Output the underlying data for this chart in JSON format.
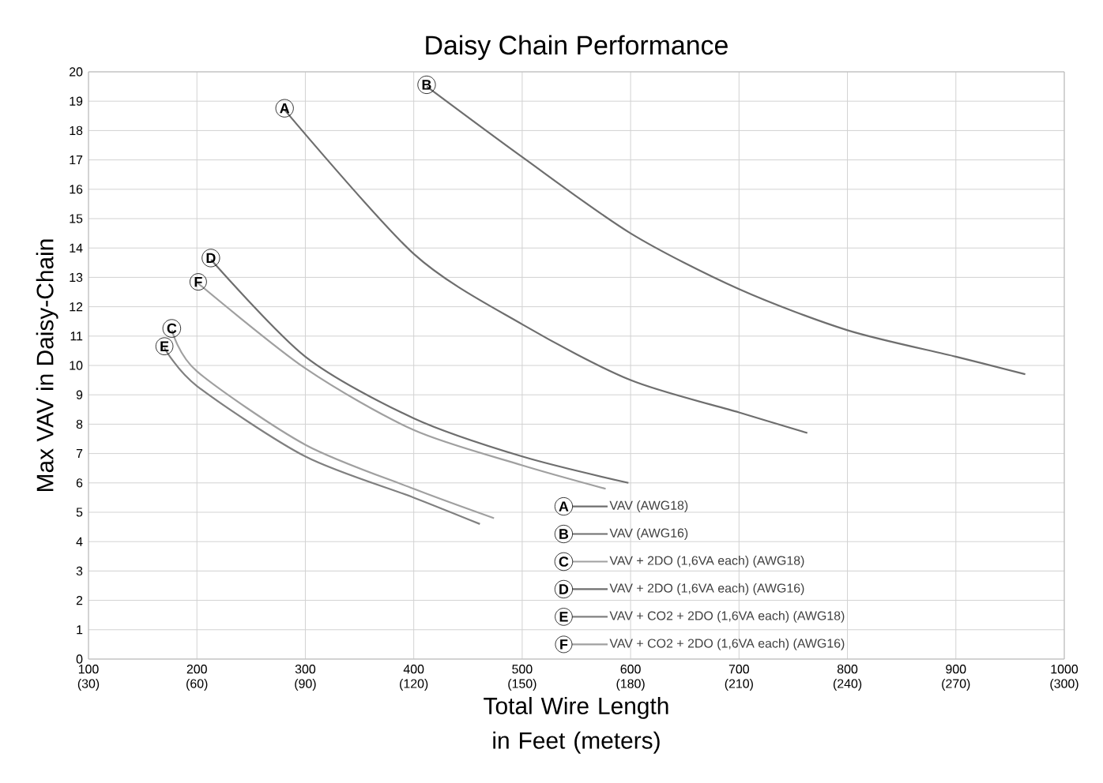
{
  "chart_data": {
    "type": "line",
    "title": "Daisy Chain Performance",
    "xlabel": "Total Wire Length in Feet (meters)",
    "ylabel": "Max VAV in Daisy-Chain",
    "xlim": [
      100,
      1000
    ],
    "ylim": [
      0,
      20
    ],
    "xticks": [
      100,
      200,
      300,
      400,
      500,
      600,
      700,
      800,
      900,
      1000
    ],
    "x2lim": [
      30,
      300
    ],
    "x2ticks": [
      {
        "value": 30,
        "label": "(30)"
      },
      {
        "value": 60,
        "label": "(60)"
      },
      {
        "value": 90,
        "label": "(90)"
      },
      {
        "value": 120,
        "label": "(120)"
      },
      {
        "value": 150,
        "label": "(150)"
      },
      {
        "value": 180,
        "label": "(180)"
      },
      {
        "value": 210,
        "label": "(210)"
      },
      {
        "value": 240,
        "label": "(240)"
      },
      {
        "value": 270,
        "label": "(270)"
      },
      {
        "value": 300,
        "label": "(300)"
      }
    ],
    "yticks": [
      0,
      1,
      2,
      3,
      4,
      5,
      6,
      7,
      8,
      9,
      10,
      11,
      12,
      13,
      14,
      15,
      16,
      17,
      18,
      19,
      20
    ],
    "grid": true,
    "marker": "none",
    "line_style": "solid",
    "legend": "bottom right",
    "series": [
      {
        "name": "VAV (AWG18)",
        "color": "#6e6e6e",
        "x": [
          281,
          400,
          500,
          600,
          700,
          763
        ],
        "values": [
          18.7,
          13.8,
          11.4,
          9.5,
          8.4,
          7.7
        ]
      },
      {
        "name": "VAV (AWG16)",
        "color": "#6e6e6e",
        "x": [
          412,
          500,
          600,
          700,
          800,
          900,
          964
        ],
        "values": [
          19.5,
          17.1,
          14.5,
          12.6,
          11.2,
          10.3,
          9.7
        ]
      },
      {
        "name": "VAV + 2DO (1,6VA each) (AWG18)",
        "color": "#a0a0a0",
        "x": [
          177,
          200,
          300,
          400,
          474
        ],
        "values": [
          11.2,
          9.8,
          7.3,
          5.8,
          4.8
        ]
      },
      {
        "name": "VAV + 2DO (1,6VA each) (AWG16)",
        "color": "#6e6e6e",
        "x": [
          213,
          300,
          400,
          500,
          598
        ],
        "values": [
          13.6,
          10.3,
          8.2,
          6.9,
          6.0
        ]
      },
      {
        "name": "VAV + CO2 + 2DO (1,6VA each) (AWG18)",
        "color": "#808080",
        "x": [
          170,
          200,
          300,
          400,
          461
        ],
        "values": [
          10.6,
          9.3,
          6.9,
          5.5,
          4.6
        ]
      },
      {
        "name": "VAV + CO2 + 2DO (1,6VA each) (AWG16)",
        "color": "#a0a0a0",
        "x": [
          201,
          300,
          400,
          500,
          577
        ],
        "values": [
          12.8,
          9.9,
          7.8,
          6.6,
          5.8
        ]
      }
    ],
    "annotations": [
      {
        "text": "A",
        "x": 281,
        "y": 18.7
      },
      {
        "text": "B",
        "x": 412,
        "y": 19.5
      },
      {
        "text": "C",
        "x": 177,
        "y": 11.2
      },
      {
        "text": "D",
        "x": 213,
        "y": 13.6
      },
      {
        "text": "E",
        "x": 170,
        "y": 10.6
      },
      {
        "text": "F",
        "x": 201,
        "y": 12.8
      }
    ]
  }
}
